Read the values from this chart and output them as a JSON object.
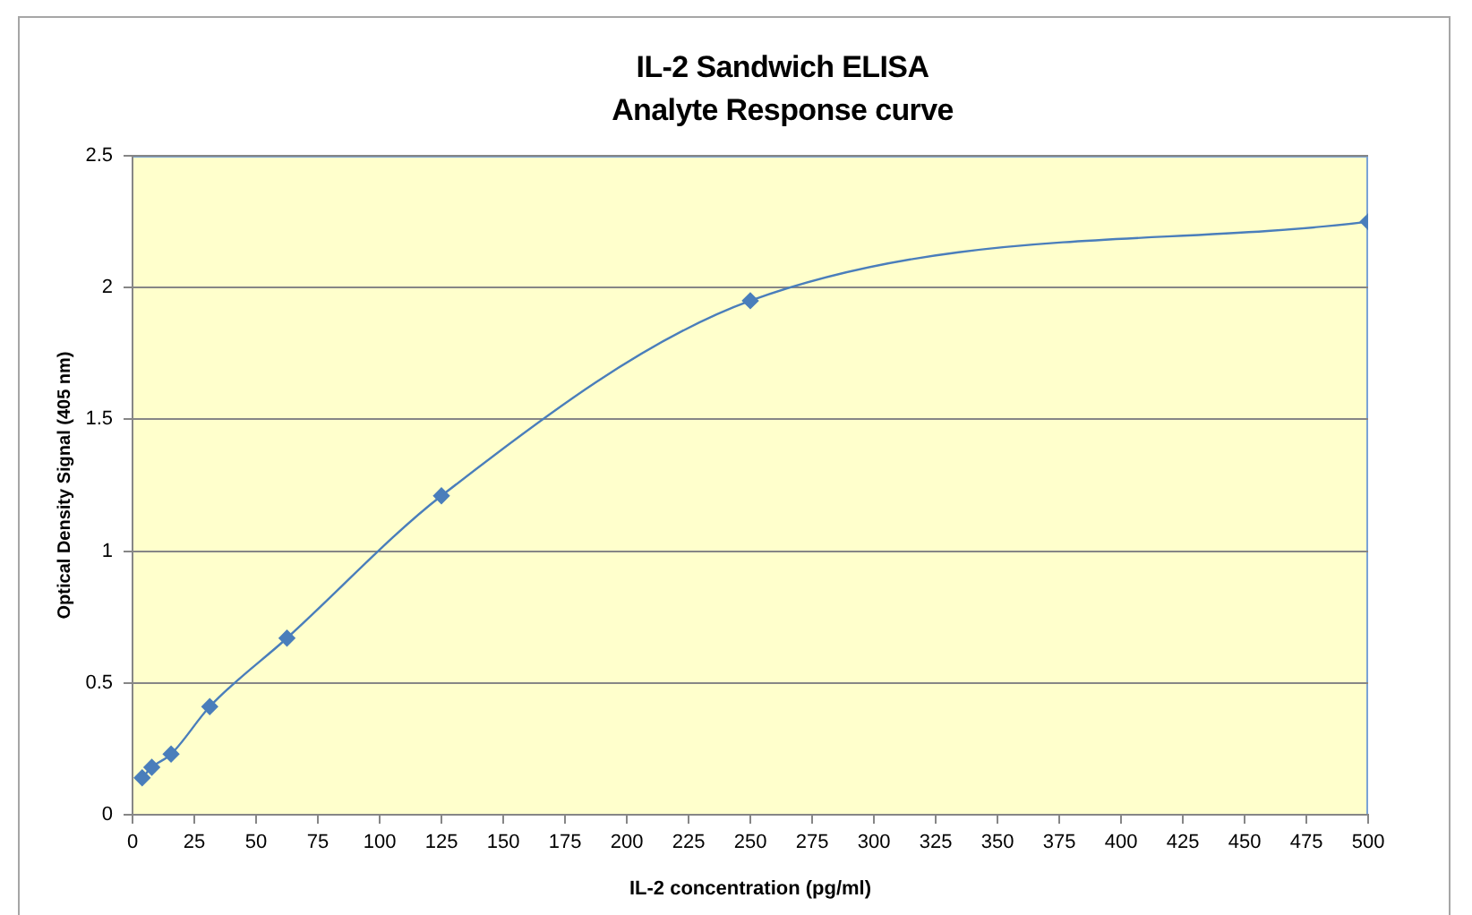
{
  "chart_data": {
    "type": "line",
    "title": "IL-2 Sandwich ELISA\nAnalyte Response curve",
    "xlabel": "IL-2 concentration (pg/ml)",
    "ylabel": "Optical Density Signal (405 nm)",
    "x": [
      3.9,
      7.8,
      15.6,
      31.25,
      62.5,
      125,
      250,
      500
    ],
    "series": [
      {
        "color": "#4a7ebb",
        "values": [
          0.14,
          0.18,
          0.23,
          0.41,
          0.67,
          1.21,
          1.95,
          2.25
        ]
      }
    ],
    "xlim": [
      0,
      500
    ],
    "xticks": [
      0,
      25,
      50,
      75,
      100,
      125,
      150,
      175,
      200,
      225,
      250,
      275,
      300,
      325,
      350,
      375,
      400,
      425,
      450,
      475,
      500
    ],
    "ylim": [
      0,
      2.5
    ],
    "yticks": [
      0,
      0.5,
      1,
      1.5,
      2,
      2.5
    ],
    "grid": "y",
    "marker": "diamond",
    "line_style": "solid"
  }
}
